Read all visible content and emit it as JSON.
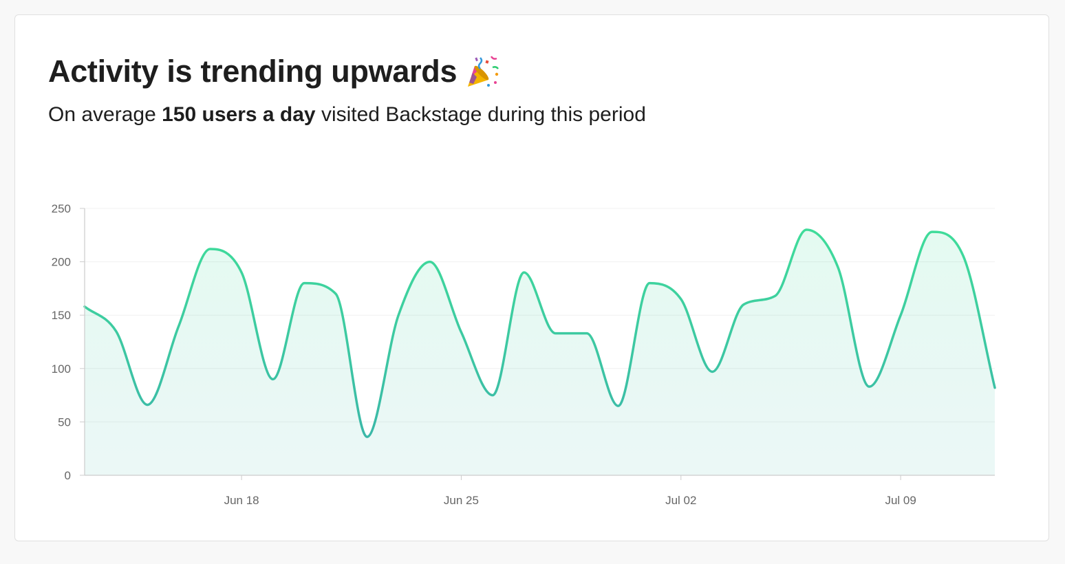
{
  "card": {
    "title": "Activity is trending upwards",
    "title_icon": "party-popper-icon",
    "subtitle_prefix": "On average ",
    "subtitle_bold": "150 users a day",
    "subtitle_suffix": " visited Backstage during this period"
  },
  "colors": {
    "line_start": "#3bb8a8",
    "line_end": "#3fdc9a",
    "grid": "#f0f0f0",
    "axis": "#cccccc",
    "tick_text": "#666666",
    "title_text": "#1e1e1e"
  },
  "chart_data": {
    "type": "area",
    "title": "",
    "xlabel": "",
    "ylabel": "",
    "x": [
      "2023-06-13",
      "2023-06-14",
      "2023-06-15",
      "2023-06-16",
      "2023-06-17",
      "2023-06-18",
      "2023-06-19",
      "2023-06-20",
      "2023-06-21",
      "2023-06-22",
      "2023-06-23",
      "2023-06-24",
      "2023-06-25",
      "2023-06-26",
      "2023-06-27",
      "2023-06-28",
      "2023-06-29",
      "2023-06-30",
      "2023-07-01",
      "2023-07-02",
      "2023-07-03",
      "2023-07-04",
      "2023-07-05",
      "2023-07-06",
      "2023-07-07",
      "2023-07-08",
      "2023-07-09",
      "2023-07-10",
      "2023-07-11",
      "2023-07-12"
    ],
    "series": [
      {
        "values": [
          158,
          135,
          66,
          140,
          212,
          190,
          90,
          180,
          170,
          36,
          150,
          200,
          134,
          75,
          190,
          133,
          133,
          65,
          180,
          165,
          97,
          160,
          168,
          230,
          195,
          83,
          150,
          228,
          205,
          82
        ]
      }
    ],
    "x_ticks": [
      "Jun 18",
      "Jun 25",
      "Jul 02",
      "Jul 09"
    ],
    "x_tick_dates": [
      "2023-06-18",
      "2023-06-25",
      "2023-07-02",
      "2023-07-09"
    ],
    "y_ticks": [
      0,
      50,
      100,
      150,
      200,
      250
    ],
    "ylim": [
      0,
      250
    ],
    "curve": "smooth",
    "fill": "gradient-light",
    "grid": "horizontal",
    "legend": "none"
  }
}
